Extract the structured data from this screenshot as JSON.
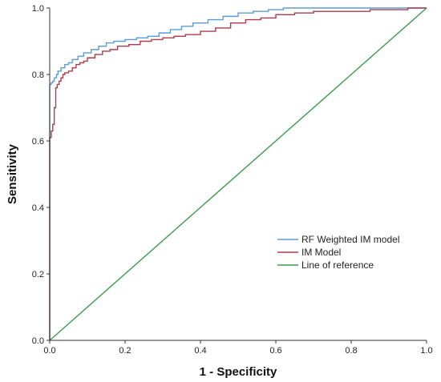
{
  "chart_data": {
    "type": "line",
    "title": "",
    "xlabel": "1 - Specificity",
    "ylabel": "Sensitivity",
    "xlim": [
      0,
      1
    ],
    "ylim": [
      0,
      1
    ],
    "xticks": [
      "0.0",
      "0.2",
      "0.4",
      "0.6",
      "0.8",
      "1.0"
    ],
    "yticks": [
      "0.0",
      "0.2",
      "0.4",
      "0.6",
      "0.8",
      "1.0"
    ],
    "grid": false,
    "legend_position": "bottom-right",
    "series": [
      {
        "name": "RF Weighted IM model",
        "color": "#5b9bd5",
        "step": true,
        "x": [
          0.0,
          0.0,
          0.004,
          0.008,
          0.012,
          0.018,
          0.022,
          0.03,
          0.04,
          0.05,
          0.06,
          0.075,
          0.09,
          0.11,
          0.13,
          0.15,
          0.17,
          0.2,
          0.23,
          0.26,
          0.29,
          0.32,
          0.35,
          0.38,
          0.42,
          0.46,
          0.5,
          0.54,
          0.58,
          0.62,
          0.7,
          0.8,
          0.9,
          0.97,
          1.0
        ],
        "y": [
          0.0,
          0.77,
          0.775,
          0.78,
          0.79,
          0.8,
          0.81,
          0.82,
          0.83,
          0.835,
          0.845,
          0.855,
          0.865,
          0.875,
          0.885,
          0.895,
          0.9,
          0.905,
          0.91,
          0.915,
          0.925,
          0.935,
          0.945,
          0.955,
          0.965,
          0.975,
          0.985,
          0.99,
          0.995,
          1.0,
          1.0,
          1.0,
          1.0,
          1.0,
          1.0
        ]
      },
      {
        "name": "IM Model",
        "color": "#b0394f",
        "step": true,
        "x": [
          0.0,
          0.0,
          0.004,
          0.008,
          0.012,
          0.016,
          0.02,
          0.025,
          0.03,
          0.035,
          0.04,
          0.05,
          0.06,
          0.07,
          0.08,
          0.09,
          0.1,
          0.12,
          0.14,
          0.16,
          0.18,
          0.21,
          0.24,
          0.27,
          0.3,
          0.33,
          0.36,
          0.4,
          0.44,
          0.48,
          0.52,
          0.56,
          0.6,
          0.65,
          0.7,
          0.75,
          0.8,
          0.85,
          0.9,
          0.95,
          1.0
        ],
        "y": [
          0.0,
          0.61,
          0.63,
          0.65,
          0.7,
          0.76,
          0.77,
          0.78,
          0.79,
          0.8,
          0.805,
          0.81,
          0.82,
          0.83,
          0.835,
          0.84,
          0.85,
          0.86,
          0.87,
          0.875,
          0.885,
          0.89,
          0.9,
          0.905,
          0.91,
          0.915,
          0.92,
          0.93,
          0.94,
          0.955,
          0.965,
          0.97,
          0.98,
          0.985,
          0.99,
          0.99,
          0.99,
          0.995,
          0.995,
          1.0,
          1.0
        ]
      },
      {
        "name": "Line of reference",
        "color": "#3c9a4e",
        "step": false,
        "x": [
          0,
          1
        ],
        "y": [
          0,
          1
        ]
      }
    ]
  }
}
